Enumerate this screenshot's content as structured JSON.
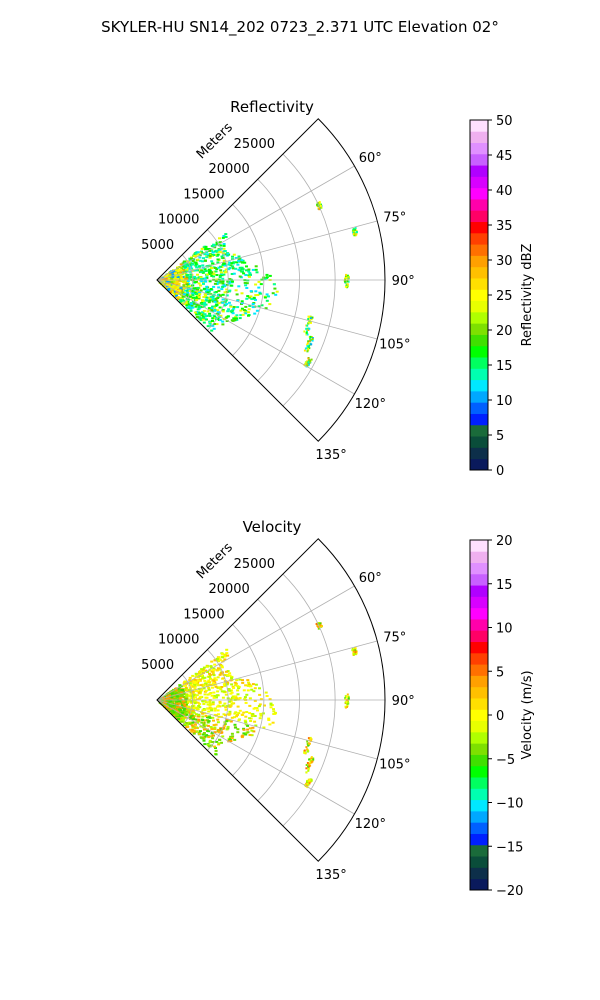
{
  "figure": {
    "suptitle": "SKYLER-HU  SN14_202  0723_2.371 UTC Elevation 02°"
  },
  "chart_data": [
    {
      "type": "polar-sector-scatter",
      "title": "Reflectivity",
      "radial_axis_label": "Meters",
      "radial_ticks": [
        "5000",
        "10000",
        "15000",
        "20000",
        "25000"
      ],
      "radial_tick_values": [
        5000,
        10000,
        15000,
        20000,
        25000
      ],
      "rlim": [
        0,
        32000
      ],
      "angular_ticks": [
        "60°",
        "75°",
        "90°",
        "105°",
        "120°",
        "135°"
      ],
      "angular_tick_values": [
        60,
        75,
        90,
        105,
        120,
        135
      ],
      "theta_range_deg": [
        45,
        135
      ],
      "colorbar": {
        "label": "Reflectivity dBZ",
        "ticks": [
          "0",
          "5",
          "10",
          "15",
          "20",
          "25",
          "30",
          "35",
          "40",
          "45",
          "50"
        ],
        "tick_values": [
          0,
          5,
          10,
          15,
          20,
          25,
          30,
          35,
          40,
          45,
          50
        ],
        "range": [
          0,
          50
        ],
        "colors": [
          "#0a1a5c",
          "#0d2f4a",
          "#0a4d3a",
          "#1a6b3a",
          "#0020ff",
          "#0060ff",
          "#00a8ff",
          "#00e8ff",
          "#00ffb0",
          "#00ff60",
          "#00ff00",
          "#40e000",
          "#7ee000",
          "#b0ff00",
          "#e8ff00",
          "#ffff00",
          "#ffe000",
          "#ffc000",
          "#ffa000",
          "#ff7000",
          "#ff4000",
          "#ff0000",
          "#ff0066",
          "#ff00aa",
          "#ff00ff",
          "#d800ff",
          "#b000ff",
          "#c860ff",
          "#e090ff",
          "#f0b0f0",
          "#ffe0ff"
        ]
      }
    },
    {
      "type": "polar-sector-scatter",
      "title": "Velocity",
      "radial_axis_label": "Meters",
      "radial_ticks": [
        "5000",
        "10000",
        "15000",
        "20000",
        "25000"
      ],
      "radial_tick_values": [
        5000,
        10000,
        15000,
        20000,
        25000
      ],
      "rlim": [
        0,
        32000
      ],
      "angular_ticks": [
        "60°",
        "75°",
        "90°",
        "105°",
        "120°",
        "135°"
      ],
      "angular_tick_values": [
        60,
        75,
        90,
        105,
        120,
        135
      ],
      "theta_range_deg": [
        45,
        135
      ],
      "colorbar": {
        "label": "Velocity (m/s)",
        "ticks": [
          "−20",
          "−15",
          "−10",
          "−5",
          "0",
          "5",
          "10",
          "15",
          "20"
        ],
        "tick_values": [
          -20,
          -15,
          -10,
          -5,
          0,
          5,
          10,
          15,
          20
        ],
        "range": [
          -20,
          20
        ],
        "colors": [
          "#0a1a5c",
          "#0d2f4a",
          "#0a4d3a",
          "#1a6b3a",
          "#0020ff",
          "#0060ff",
          "#00a8ff",
          "#00e8ff",
          "#00ffb0",
          "#00ff60",
          "#00ff00",
          "#40e000",
          "#7ee000",
          "#b0ff00",
          "#e8ff00",
          "#ffff00",
          "#ffe000",
          "#ffc000",
          "#ffa000",
          "#ff7000",
          "#ff4000",
          "#ff0000",
          "#ff0066",
          "#ff00aa",
          "#ff00ff",
          "#d800ff",
          "#b000ff",
          "#c860ff",
          "#e090ff",
          "#f0b0f0",
          "#ffe0ff"
        ]
      }
    }
  ]
}
